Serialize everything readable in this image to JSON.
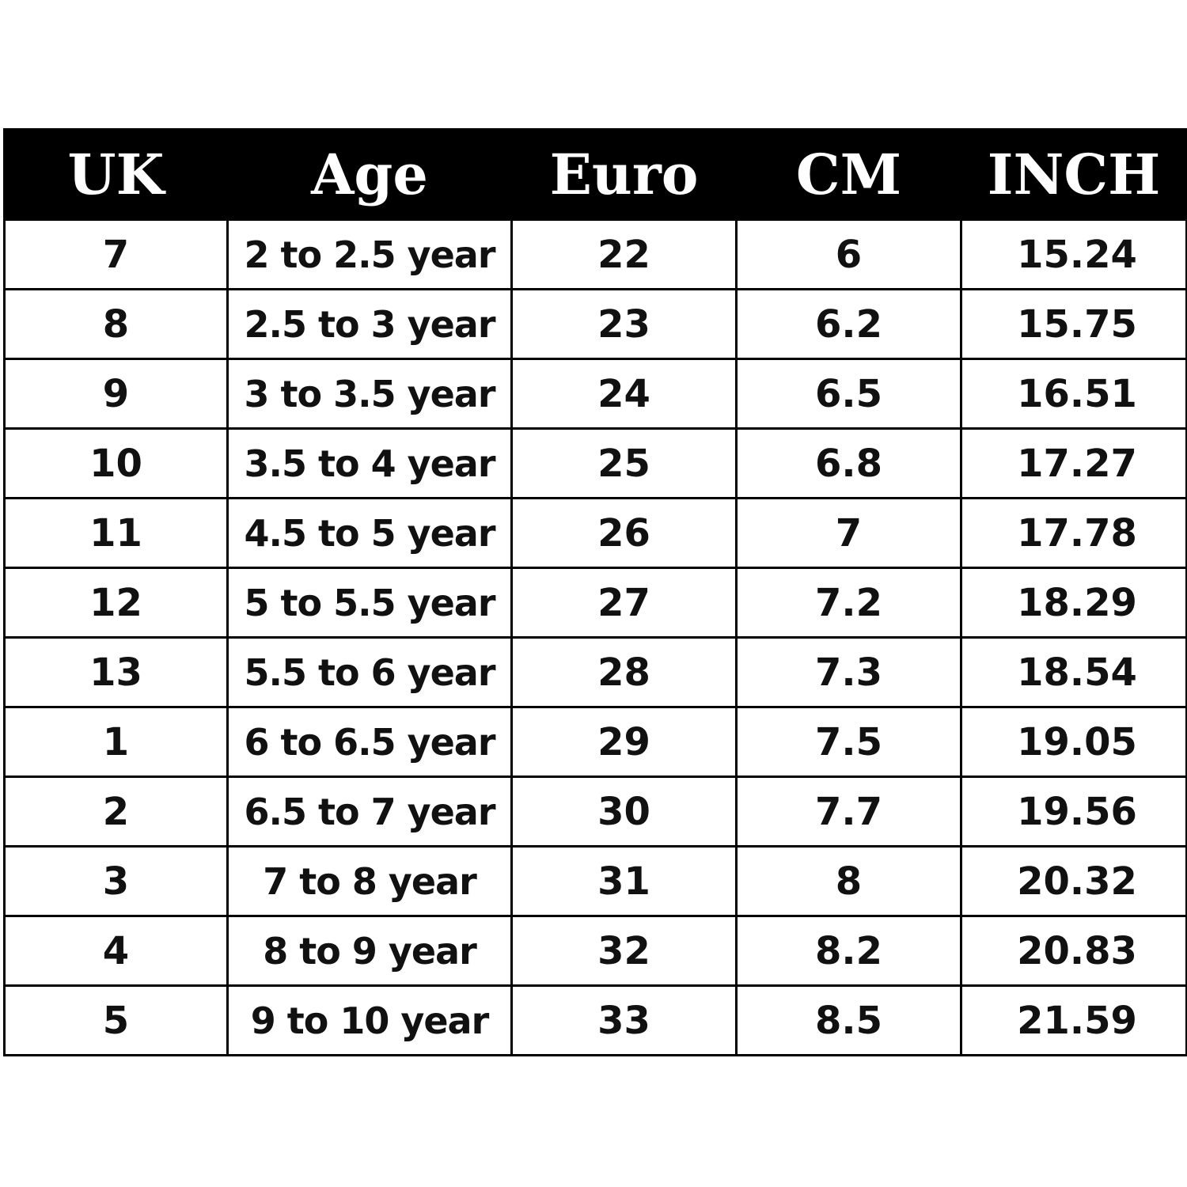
{
  "table": {
    "headers": [
      "UK",
      "Age",
      "Euro",
      "CM",
      "INCH"
    ],
    "rows": [
      [
        "7",
        "2 to 2.5 year",
        "22",
        "6",
        "15.24"
      ],
      [
        "8",
        "2.5 to 3 year",
        "23",
        "6.2",
        "15.75"
      ],
      [
        "9",
        "3 to 3.5 year",
        "24",
        "6.5",
        "16.51"
      ],
      [
        "10",
        "3.5 to 4 year",
        "25",
        "6.8",
        "17.27"
      ],
      [
        "11",
        "4.5 to 5 year",
        "26",
        "7",
        "17.78"
      ],
      [
        "12",
        "5 to 5.5 year",
        "27",
        "7.2",
        "18.29"
      ],
      [
        "13",
        "5.5 to 6 year",
        "28",
        "7.3",
        "18.54"
      ],
      [
        "1",
        "6 to 6.5 year",
        "29",
        "7.5",
        "19.05"
      ],
      [
        "2",
        "6.5 to 7 year",
        "30",
        "7.7",
        "19.56"
      ],
      [
        "3",
        "7 to 8 year",
        "31",
        "8",
        "20.32"
      ],
      [
        "4",
        "8 to 9 year",
        "32",
        "8.2",
        "20.83"
      ],
      [
        "5",
        "9 to 10 year",
        "33",
        "8.5",
        "21.59"
      ]
    ]
  },
  "colors": {
    "header_background": "#000000",
    "header_text": "#ffffff",
    "cell_text": "#111111",
    "grid_lines": "#000000"
  }
}
